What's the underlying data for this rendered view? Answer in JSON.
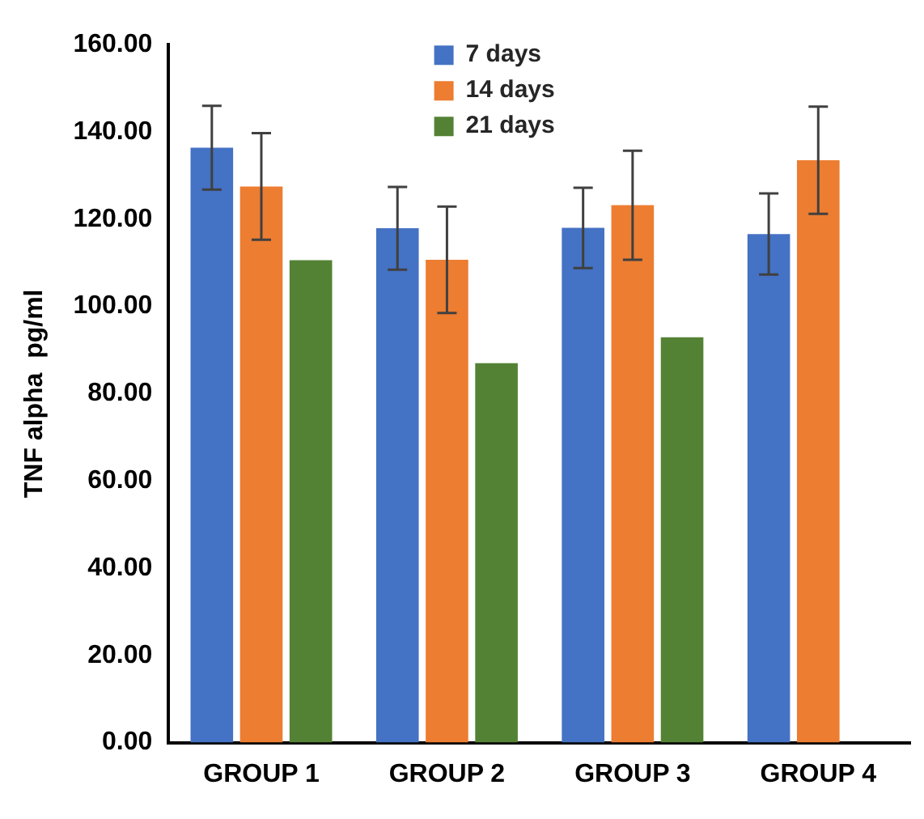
{
  "chart_data": {
    "type": "bar",
    "ylabel": "TNF alpha  pg/ml",
    "categories": [
      "GROUP 1",
      "GROUP 2",
      "GROUP 3",
      "GROUP 4"
    ],
    "series": [
      {
        "name": "7 days",
        "color": "#4472c4",
        "values": [
          136.4,
          117.9,
          118.0,
          116.6
        ],
        "errors": [
          9.6,
          9.5,
          9.2,
          9.3
        ]
      },
      {
        "name": "14 days",
        "color": "#ed7d31",
        "values": [
          127.5,
          110.7,
          123.2,
          133.5
        ],
        "errors": [
          12.2,
          12.2,
          12.5,
          12.3
        ]
      },
      {
        "name": "21 days",
        "color": "#548235",
        "values": [
          110.6,
          87.0,
          92.9,
          null
        ]
      }
    ],
    "ylim": [
      0,
      160
    ],
    "yticks": [
      {
        "value": 0,
        "label": "0.00"
      },
      {
        "value": 20,
        "label": "20.00"
      },
      {
        "value": 40,
        "label": "40.00"
      },
      {
        "value": 60,
        "label": "60.00"
      },
      {
        "value": 80,
        "label": "80.00"
      },
      {
        "value": 100,
        "label": "100.00"
      },
      {
        "value": 120,
        "label": "120.00"
      },
      {
        "value": 140,
        "label": "140.00"
      },
      {
        "value": 160,
        "label": "160.00"
      }
    ],
    "grid": false,
    "legend": "top"
  }
}
